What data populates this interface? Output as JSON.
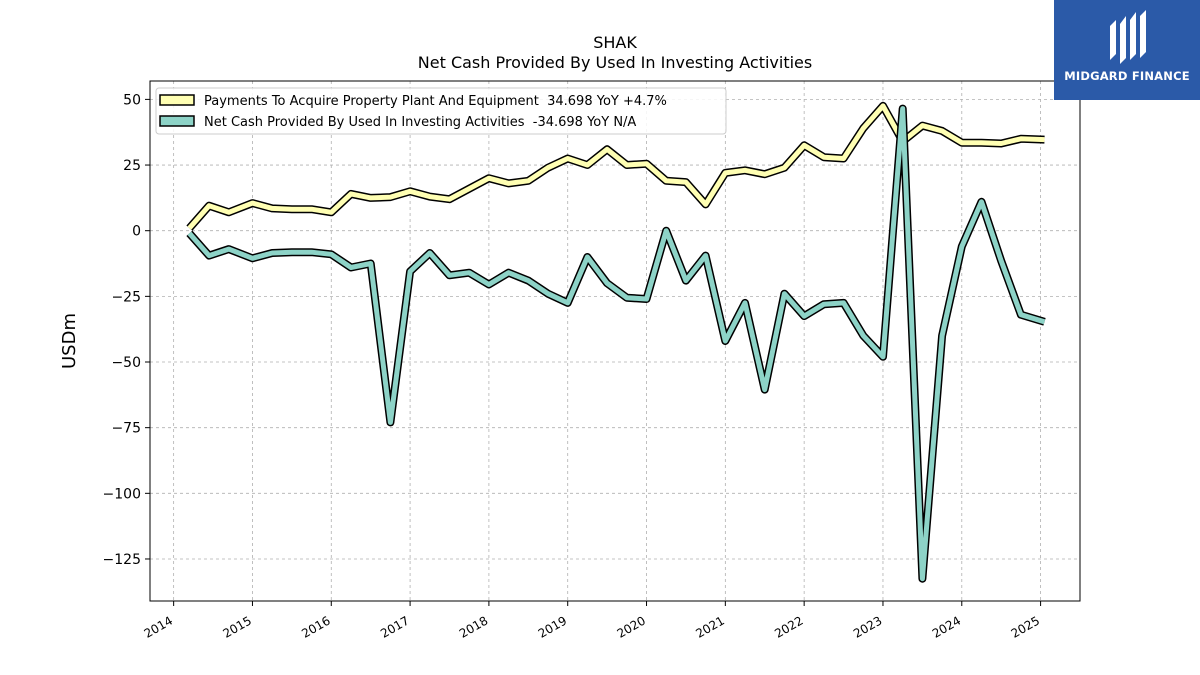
{
  "brand": {
    "name": "MIDGARD FINANCE",
    "bg_color": "#2b5aa8"
  },
  "chart_data": {
    "type": "line",
    "title": "SHAK",
    "subtitle": "Net Cash Provided By Used In Investing Activities",
    "ylabel": "USDm",
    "xlabel": "",
    "xlim": [
      2013.7,
      2025.5
    ],
    "ylim": [
      -141,
      57
    ],
    "yticks": [
      50,
      25,
      0,
      -25,
      -50,
      -75,
      -100,
      -125
    ],
    "ytick_labels": [
      "50",
      "25",
      "0",
      "−25",
      "−50",
      "−75",
      "−100",
      "−125"
    ],
    "xticks": [
      2014,
      2015,
      2016,
      2017,
      2018,
      2019,
      2020,
      2021,
      2022,
      2023,
      2024,
      2025
    ],
    "xtick_labels": [
      "2014",
      "2015",
      "2016",
      "2017",
      "2018",
      "2019",
      "2020",
      "2021",
      "2022",
      "2023",
      "2024",
      "2025"
    ],
    "grid": true,
    "legend_position": "top-left",
    "series": [
      {
        "name": "Payments To Acquire Property Plant And Equipment  34.698 YoY +4.7%",
        "color": "#ffffb3",
        "x": [
          2014.2,
          2014.45,
          2014.7,
          2015.0,
          2015.25,
          2015.5,
          2015.75,
          2016.0,
          2016.25,
          2016.5,
          2016.75,
          2017.0,
          2017.25,
          2017.5,
          2017.75,
          2018.0,
          2018.25,
          2018.5,
          2018.75,
          2019.0,
          2019.25,
          2019.5,
          2019.75,
          2020.0,
          2020.25,
          2020.5,
          2020.75,
          2021.0,
          2021.25,
          2021.5,
          2021.75,
          2022.0,
          2022.25,
          2022.5,
          2022.75,
          2023.0,
          2023.25,
          2023.5,
          2023.75,
          2024.0,
          2024.25,
          2024.5,
          2024.75,
          2025.05
        ],
        "y": [
          1,
          9.5,
          7,
          10.5,
          8.5,
          8.2,
          8.2,
          7,
          14,
          12.5,
          12.8,
          15,
          13,
          12,
          16,
          20,
          18,
          19,
          24,
          27.5,
          25,
          31,
          25,
          25.5,
          19,
          18.5,
          10,
          22,
          23,
          21.5,
          24,
          32.5,
          28,
          27.5,
          39,
          47.5,
          34,
          40,
          38,
          33.5,
          33.5,
          33.2,
          35,
          34.7
        ]
      },
      {
        "name": "Net Cash Provided By Used In Investing Activities  -34.698 YoY N/A",
        "color": "#8dd3c7",
        "x": [
          2014.2,
          2014.45,
          2014.7,
          2015.0,
          2015.25,
          2015.5,
          2015.75,
          2016.0,
          2016.25,
          2016.5,
          2016.75,
          2017.0,
          2017.25,
          2017.5,
          2017.75,
          2018.0,
          2018.25,
          2018.5,
          2018.75,
          2019.0,
          2019.25,
          2019.5,
          2019.75,
          2020.0,
          2020.25,
          2020.5,
          2020.75,
          2021.0,
          2021.25,
          2021.5,
          2021.75,
          2022.0,
          2022.25,
          2022.5,
          2022.75,
          2023.0,
          2023.25,
          2023.5,
          2023.75,
          2024.0,
          2024.25,
          2024.5,
          2024.75,
          2025.05
        ],
        "y": [
          -1,
          -9.5,
          -7,
          -10.5,
          -8.5,
          -8.2,
          -8.2,
          -9,
          -14,
          -12.5,
          -73,
          -15.5,
          -8.5,
          -17,
          -16,
          -20.5,
          -16,
          -19,
          -24,
          -27.5,
          -10,
          -20,
          -25.5,
          -26,
          0,
          -19,
          -9.5,
          -42,
          -27.5,
          -60.5,
          -24,
          -32.5,
          -28,
          -27.5,
          -40,
          -48,
          46.5,
          -132.5,
          -40,
          -6,
          11,
          -11.5,
          -32,
          -34.7
        ]
      }
    ]
  }
}
